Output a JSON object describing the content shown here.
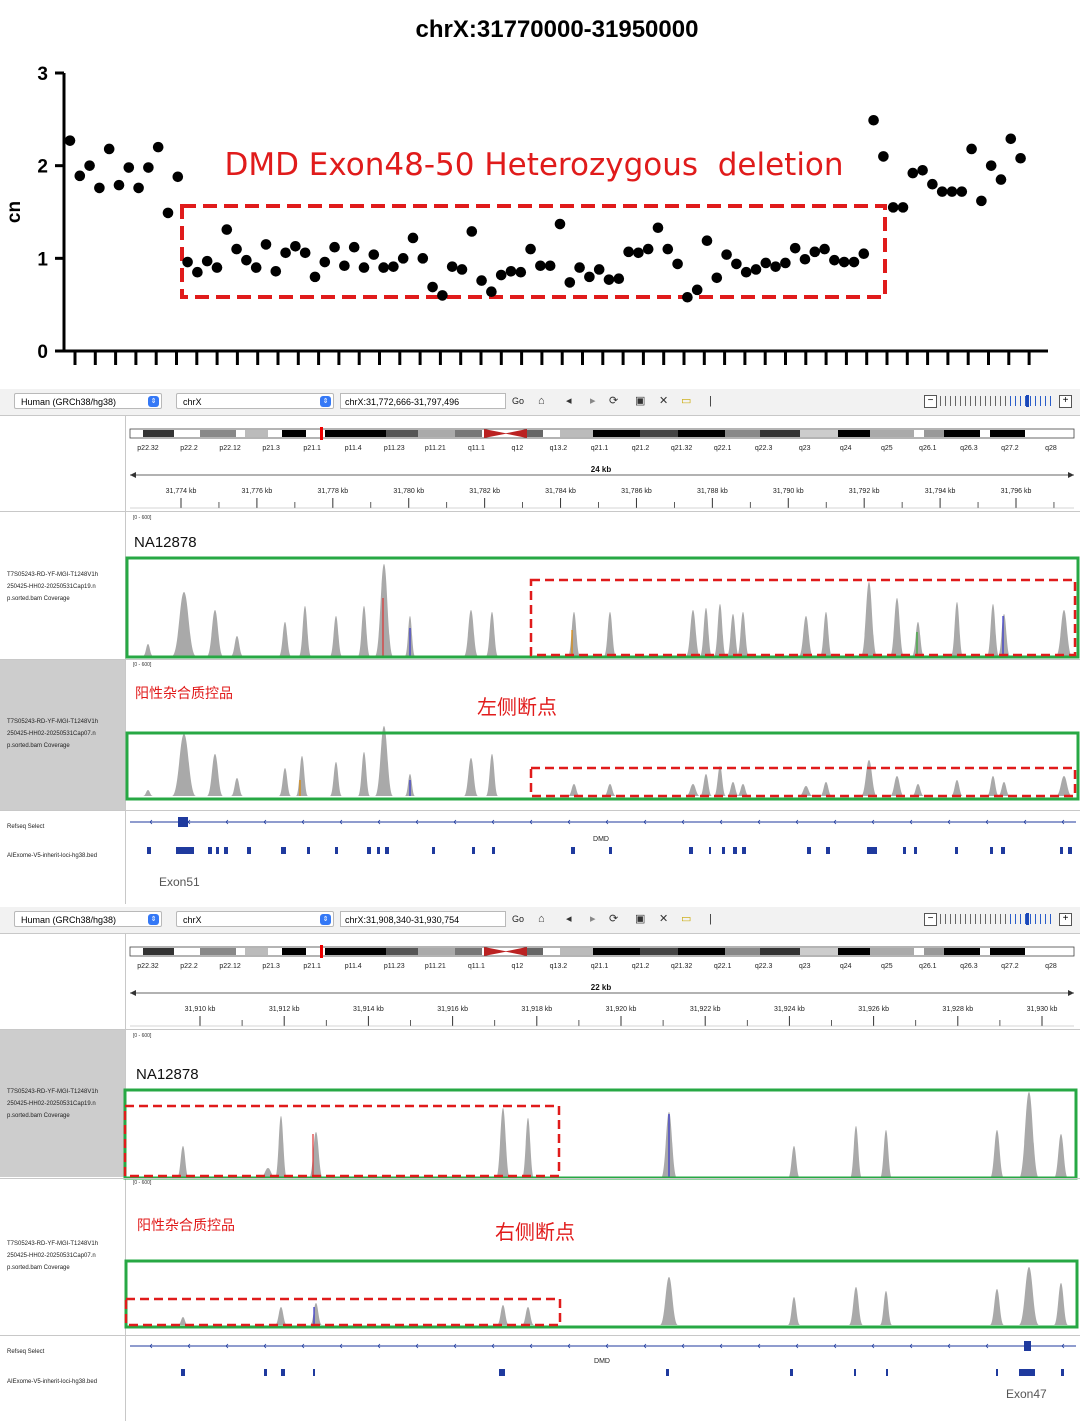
{
  "chart_data": {
    "type": "scatter",
    "title": "chrX:31770000-31950000",
    "ylabel": "cn",
    "xlabel": "",
    "ylim": [
      0,
      3
    ],
    "yticks": [
      0,
      1,
      2,
      3
    ],
    "grid": false,
    "annotation": "DMD Exon48-50 Heterozygous  deletion",
    "series": [
      {
        "x": [
          1,
          2,
          3,
          4,
          5,
          6,
          7,
          8,
          9,
          10,
          11,
          12,
          13,
          14,
          15,
          16,
          17,
          18,
          19,
          20,
          21,
          22,
          23,
          24,
          25,
          26,
          27,
          28,
          29,
          30,
          31,
          32,
          33,
          34,
          35,
          36,
          37,
          38,
          39,
          40,
          41,
          42,
          43,
          44,
          45,
          46,
          47,
          48,
          49,
          50,
          51,
          52,
          53,
          54,
          55,
          56,
          57,
          58,
          59,
          60,
          61,
          62,
          63,
          64,
          65,
          66,
          67,
          68,
          69,
          70,
          71,
          72,
          73,
          74,
          75,
          76,
          77,
          78,
          79,
          80,
          81,
          82,
          83,
          84,
          85,
          86,
          87,
          88,
          89,
          90,
          91,
          92,
          93,
          94,
          95,
          96,
          97,
          98
        ],
        "y": [
          2.27,
          1.89,
          2.0,
          1.76,
          2.18,
          1.79,
          1.98,
          1.76,
          1.98,
          2.2,
          1.49,
          1.88,
          0.96,
          0.85,
          0.97,
          0.9,
          1.31,
          1.1,
          0.98,
          0.9,
          1.15,
          0.86,
          1.06,
          1.13,
          1.06,
          0.8,
          0.96,
          1.12,
          0.92,
          1.12,
          0.9,
          1.04,
          0.9,
          0.91,
          1.0,
          1.22,
          1.0,
          0.69,
          0.6,
          0.91,
          0.88,
          1.29,
          0.76,
          0.64,
          0.82,
          0.86,
          0.85,
          1.1,
          0.92,
          0.92,
          1.37,
          0.74,
          0.9,
          0.8,
          0.88,
          0.77,
          0.78,
          1.07,
          1.06,
          1.1,
          1.33,
          1.1,
          0.94,
          0.58,
          0.66,
          1.19,
          0.79,
          1.04,
          0.94,
          0.85,
          0.88,
          0.95,
          0.91,
          0.95,
          1.11,
          0.99,
          1.07,
          1.1,
          0.98,
          0.96,
          0.96,
          1.05,
          2.49,
          2.1,
          1.55,
          1.55,
          1.92,
          1.95,
          1.8,
          1.72,
          1.72,
          1.72,
          2.18,
          1.62,
          2.0,
          1.85,
          2.29,
          2.08
        ]
      }
    ]
  },
  "panels": [
    {
      "genome_label": "Human (GRCh38/hg38)",
      "chrom_label": "chrX",
      "locus": "chrX:31,772,666-31,797,496",
      "go_label": "Go",
      "bands": [
        "p22.32",
        "p22.2",
        "p22.12",
        "p21.3",
        "p21.1",
        "p11.4",
        "p11.23",
        "p11.21",
        "q11.1",
        "q12",
        "q13.2",
        "q21.1",
        "q21.2",
        "q21.32",
        "q22.1",
        "q22.3",
        "q23",
        "q24",
        "q25",
        "q26.1",
        "q26.3",
        "q27.2",
        "q28"
      ],
      "span": "24 kb",
      "ruler": [
        "31,774 kb",
        "31,776 kb",
        "31,778 kb",
        "31,780 kb",
        "31,782 kb",
        "31,784 kb",
        "31,786 kb",
        "31,788 kb",
        "31,790 kb",
        "31,792 kb",
        "31,794 kb",
        "31,796 kb"
      ],
      "scale1": "[0 - 600]",
      "scale2": "[0 - 600]",
      "sample1_name": "NA12878",
      "sample2_name": "阳性杂合质控品",
      "breakpoint": "左侧断点",
      "track1": "T7S05243-RD-YF-MGI-T1248V1h\n250425-HH02-20250531Cap19.n\np.sorted.bam Coverage",
      "track2": "T7S05243-RD-YF-MGI-T1248V1h\n250425-HH02-20250531Cap07.n\np.sorted.bam Coverage",
      "refseq_label": "Refseq Select",
      "bed_label": "AIExome-V5-inherit-loci-hg38.bed",
      "gene_label": "DMD",
      "exon_label": "Exon51"
    },
    {
      "genome_label": "Human (GRCh38/hg38)",
      "chrom_label": "chrX",
      "locus": "chrX:31,908,340-31,930,754",
      "go_label": "Go",
      "bands": [
        "p22.32",
        "p22.2",
        "p22.12",
        "p21.3",
        "p21.1",
        "p11.4",
        "p11.23",
        "p11.21",
        "q11.1",
        "q12",
        "q13.2",
        "q21.1",
        "q21.2",
        "q21.32",
        "q22.1",
        "q22.3",
        "q23",
        "q24",
        "q25",
        "q26.1",
        "q26.3",
        "q27.2",
        "q28"
      ],
      "span": "22 kb",
      "ruler": [
        "31,910 kb",
        "31,912 kb",
        "31,914 kb",
        "31,916 kb",
        "31,918 kb",
        "31,920 kb",
        "31,922 kb",
        "31,924 kb",
        "31,926 kb",
        "31,928 kb",
        "31,930 kb"
      ],
      "scale1": "[0 - 600]",
      "scale2": "[0 - 600]",
      "sample1_name": "NA12878",
      "sample2_name": "阳性杂合质控品",
      "breakpoint": "右侧断点",
      "track1": "T7S05243-RD-YF-MGI-T1248V1h\n250425-HH02-20250531Cap19.n\np.sorted.bam Coverage",
      "track2": "T7S05243-RD-YF-MGI-T1248V1h\n250425-HH02-20250531Cap07.n\np.sorted.bam Coverage",
      "refseq_label": "Refseq Select",
      "bed_label": "AIExome-V5-inherit-loci-hg38.bed",
      "gene_label": "DMD",
      "exon_label": "Exon47"
    }
  ],
  "colors": {
    "coverage": "#a9a9a9",
    "highlight_green": "#27a844",
    "dashed_red": "#e01b1b",
    "gene_blue": "#1f3a9e"
  }
}
